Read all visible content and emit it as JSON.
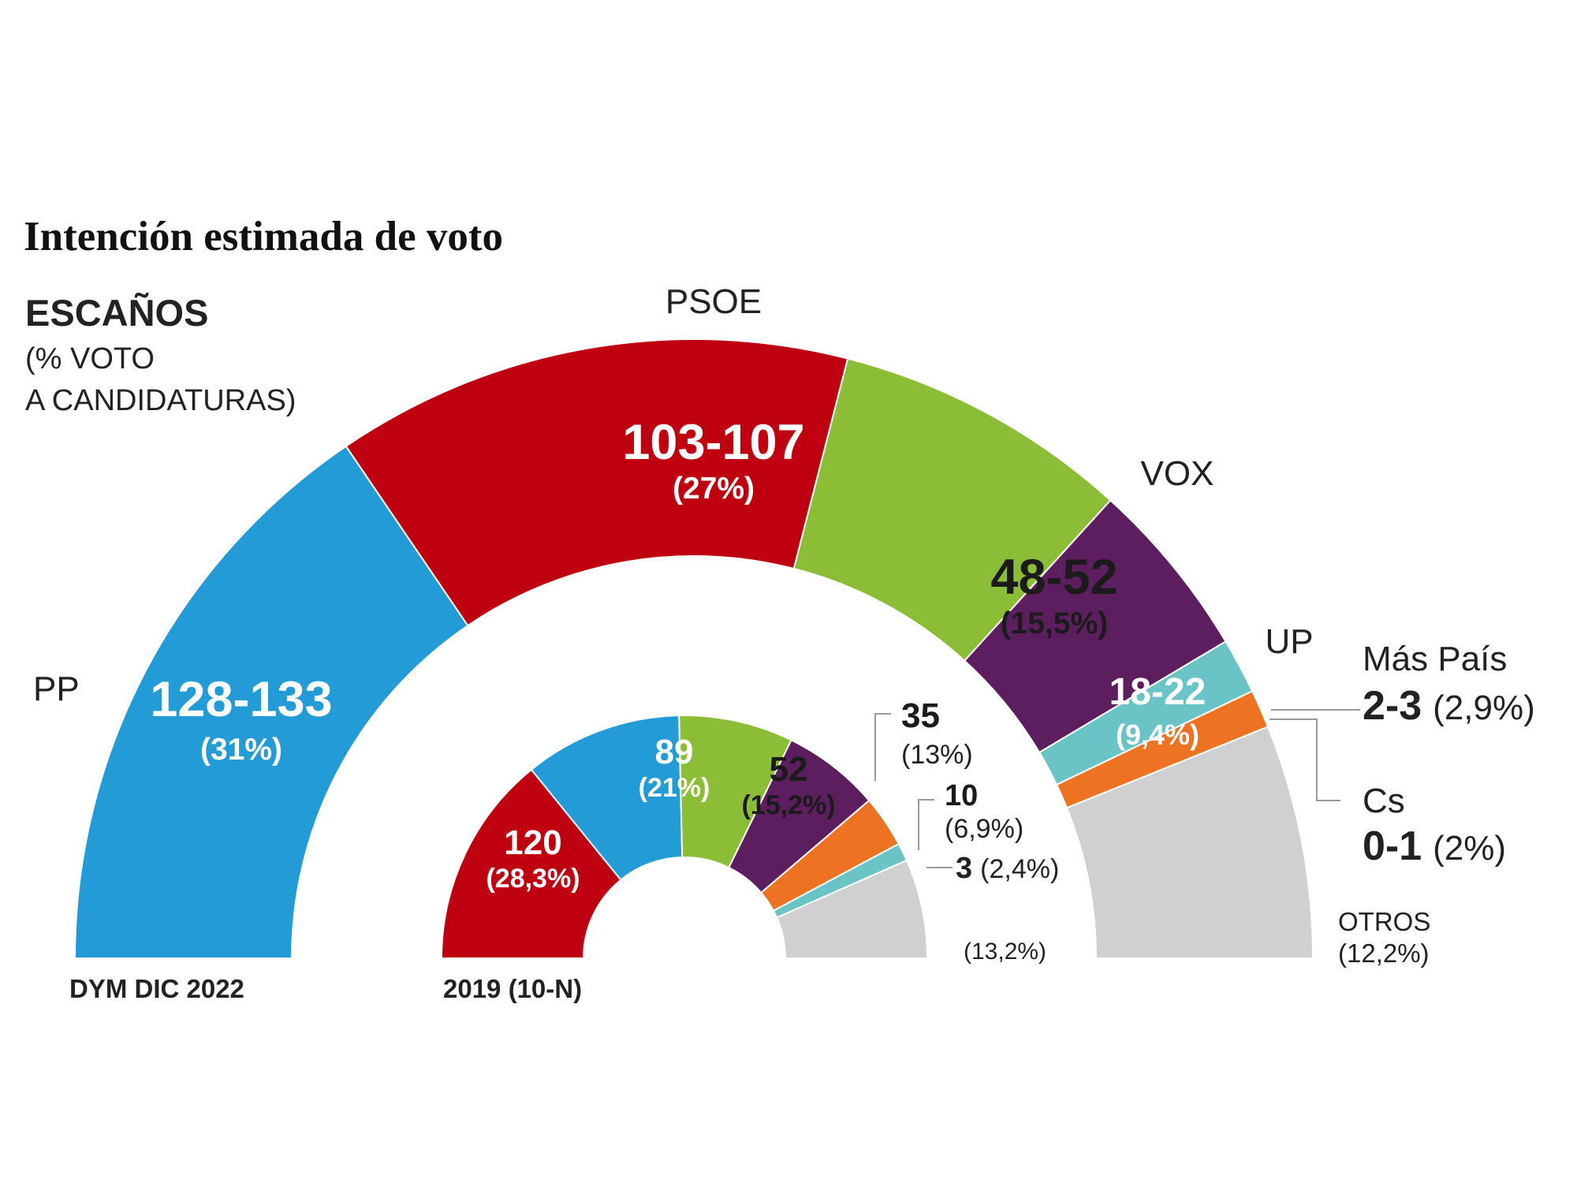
{
  "title": "Intención estimada de voto",
  "subtitle": "ESCAÑOS",
  "subtitle_line2": "(% VOTO",
  "subtitle_line3": "A CANDIDATURAS)",
  "chart_data": [
    {
      "type": "pie",
      "label": "DYM DIC 2022",
      "slices": [
        {
          "party": "PP",
          "seats": "128-133",
          "pct": "(31%)",
          "pct_value": 31,
          "color": "#239bd6"
        },
        {
          "party": "PSOE",
          "seats": "103-107",
          "pct": "(27%)",
          "pct_value": 27,
          "color": "#be0010"
        },
        {
          "party": "VOX",
          "seats": "48-52",
          "pct": "(15,5%)",
          "pct_value": 15.5,
          "color": "#8cbd37"
        },
        {
          "party": "UP",
          "seats": "18-22",
          "pct": "(9,4%)",
          "pct_value": 9.4,
          "color": "#5c1e5e"
        },
        {
          "party": "Más País",
          "seats": "2-3",
          "pct": "(2,9%)",
          "pct_value": 2.9,
          "color": "#6ac3c4"
        },
        {
          "party": "Cs",
          "seats": "0-1",
          "pct": "(2%)",
          "pct_value": 2,
          "color": "#ed7221"
        },
        {
          "party": "OTROS",
          "seats": "",
          "pct": "(12,2%)",
          "pct_value": 12.2,
          "color": "#d0d0d0"
        }
      ]
    },
    {
      "type": "pie",
      "label": "2019 (10-N)",
      "slices": [
        {
          "party": "PSOE",
          "seats": "120",
          "pct": "(28,3%)",
          "pct_value": 28.3,
          "color": "#be0010"
        },
        {
          "party": "PP",
          "seats": "89",
          "pct": "(21%)",
          "pct_value": 21,
          "color": "#239bd6"
        },
        {
          "party": "VOX",
          "seats": "52",
          "pct": "(15,2%)",
          "pct_value": 15.2,
          "color": "#8cbd37"
        },
        {
          "party": "UP",
          "seats": "35",
          "pct": "(13%)",
          "pct_value": 13,
          "color": "#5c1e5e"
        },
        {
          "party": "Cs",
          "seats": "10",
          "pct": "(6,9%)",
          "pct_value": 6.9,
          "color": "#ed7221"
        },
        {
          "party": "Más País",
          "seats": "3",
          "pct": "(2,4%)",
          "pct_value": 2.4,
          "color": "#6ac3c4"
        },
        {
          "party": "Otros",
          "seats": "",
          "pct": "(13,2%)",
          "pct_value": 13.2,
          "color": "#d0d0d0"
        }
      ]
    }
  ]
}
